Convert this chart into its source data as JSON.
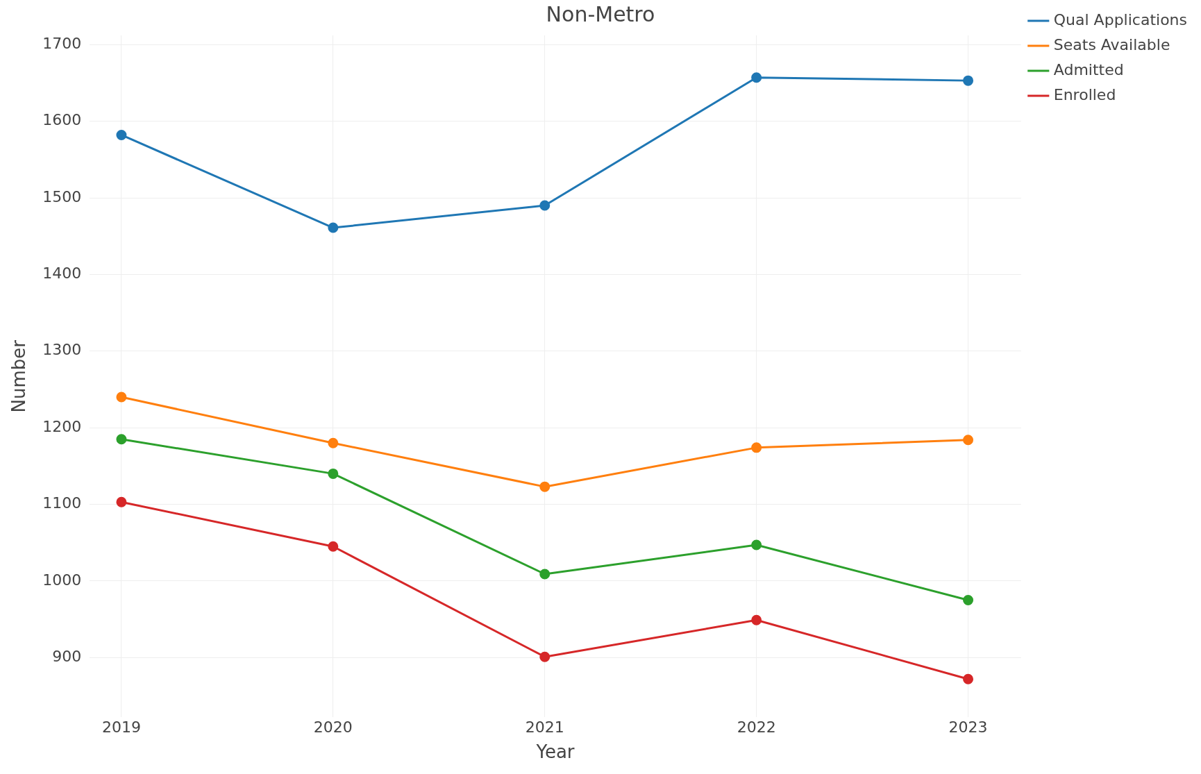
{
  "chart_data": {
    "type": "line",
    "title": "Non-Metro",
    "xlabel": "Year",
    "ylabel": "Number",
    "x": [
      2019,
      2020,
      2021,
      2022,
      2023
    ],
    "series": [
      {
        "name": "Qual Applications",
        "color": "#1f77b4",
        "values": [
          1582,
          1461,
          1490,
          1657,
          1653
        ]
      },
      {
        "name": "Seats Available",
        "color": "#ff7f0e",
        "values": [
          1240,
          1180,
          1123,
          1174,
          1184
        ]
      },
      {
        "name": "Admitted",
        "color": "#2ca02c",
        "values": [
          1185,
          1140,
          1009,
          1047,
          975
        ]
      },
      {
        "name": "Enrolled",
        "color": "#d62728",
        "values": [
          1103,
          1045,
          901,
          949,
          872
        ]
      }
    ],
    "xlim": [
      2018.85,
      2023.25
    ],
    "xticks": [
      2019,
      2020,
      2021,
      2022,
      2023
    ],
    "ylim": [
      822,
      1712
    ],
    "yticks": [
      900,
      1000,
      1100,
      1200,
      1300,
      1400,
      1500,
      1600,
      1700
    ],
    "grid": true,
    "legend": "top right",
    "marker": "circle",
    "line_style": "solid"
  }
}
